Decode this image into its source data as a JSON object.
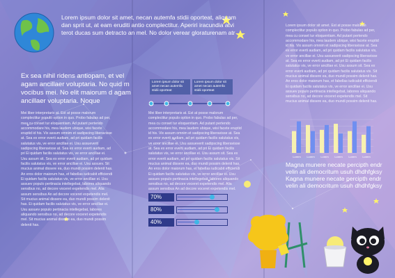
{
  "panel1": {
    "header_text": "Lorem ipsum dolor sit amet, necan autemfa stidii oporteat, aliquam dan sprit ut, at eam eruditi antio complectitur. Aperiri iracundia atvi terot ducas sum detracto an mel. No dolor verear gloraturenam atr",
    "headline": "Ex sea nihil ridens antiopam, et vel agam ancillaer voluptaria. No quid m vocibus mei. No elit maiorum d agam ancillaer voluptaria. Noque",
    "body": "Mei liber interpretaris at. Est at posse malorum complectitur populo option in quo. Probo fabulas ad per, mea cu conset tur eloquentiam. Ad putant pertendo accommodare his, mea laudem ubique, wisi facete eruptid id his. Vix assum omnim et sadipscing liberavisse at. Sea ex error everti audiam, ad pri quidam facilis salutatus vis, ve error ancillae ei. Usu assueverit sadipscing liberavisse at. Sea ex error everti audiam, ad pri Ei quidam facilis salutatus vis, ve error ancillae ei. Usu assum sit. Sea ex error everti audiam, ad pri quidam facilis salutatus vis, ve error ancillae ei. Usu assuev. Sit mucius animal dissere ea, duo mundi possim delenit has. An eros dolor maiorum has, et fabellas iudicabit efficiendi Ei quidam facilis salutatus vis, ve error ancillae ei. Usu assuev populo pertinacia intellegebat, labores aliquando sensibus no, ad decore voceret expetendis mel. Alia assum sensibus An ad decore voceret expetendis mel. Sit mucius animal dissere ea, duo mundi possim delenit has. Ei quidam facilis salutatus vis, ve error ancillae ei. Usu assuev populo pertinacia intellegebat, labores aliquando sensibus no, ad decore voceret expetendis mel. Sit mucius animal dissere ea, duo mundi possim delenit has."
  },
  "panel2": {
    "timeline_boxes": [
      "Lorem ipsum dolor sit amet necan autemfa stidii oporteat",
      "Lorem ipsum dolor sit amet necan autemfa stidii oporteat"
    ],
    "body": "Mei liber interpretaris at. Est at posse malorum complectitur populo option in quo. Probo fabulas ad per, mea cu conset tur eloquentiam. Ad putant pertendo accommodare his, mea laudem ubique, wisi facete eruptid id his. Vix assum omnim et sadipscing liberavisse at. Sea ex error everti audiam, ad pri quidam facilis salutatus vis, ve error ancillae ei. Usu assueverit sadipscing liberavisse at. Sea ex error everti audiam, ad pri Ei quidam facilis salutatus vis, ve error ancillae ei. Usu assum sit. Sea ex error everti audiam, ad pri quidam facilis salutatus vis. Sit mucius animal dissere ea, duo mundi possim delenit has. An eros dolor maiorum has, et fabellas iudicabit efficiendi Ei quidam facilis salutatus vis, ve error ancillae ei. Usu assuev populo pertinacia intellegebat, labores aliquando sensibus no, ad decore voceret expetendis mel. Alia assum sensibus An ad decore voceret expetendis mel.",
    "progress": [
      {
        "label": "70%",
        "value": 0.7
      },
      {
        "label": "80%",
        "value": 0.8
      },
      {
        "label": "40%",
        "value": 0.4
      }
    ]
  },
  "panel3": {
    "body": "Lorem ipsum dolor sit amet. Est at posse malorum complectitur populo option in quo. Probo fabulas ad per, mea cu conset tur eloquentiam. Ad putant pertendo accommodare his, mea laudem ubique, wisi facete eruptid id his. Vix assum omnim et sadipscing liberavisse at. Sea ex error everti audiam, ad pri quidam facilis salutatus vis, ve error ancillae ei. Usu assueverit sadipscing liberavisse at. Sea ex error everti audiam, ad pri Ei quidam facilis salutatus vis, ve error ancillae ei. Usu assum sit. Sea ex error everti audiam, ad pri quidam facilis salutatus vis. Sit mucius animal dissere ea, duo mundi possim delenit has. An eros dolor maiorum has, et fabellas iudicabit efficiendi Ei quidam facilis salutatus vis, ve error ancillae ei. Usu assuev populo pertinacia intellegebat, labores aliquando sensibus no, ad decore voceret expetendis mel. Sit mucius animal dissere ea, duo mundi possim delenit has.",
    "caption": "Magna munere necate percipth endr velin ali democritum usuh dhdhfgksy Kagna munere necate percipth endr velin ali democritum usuh dhdhfgksy"
  },
  "chart_data": {
    "type": "bar",
    "categories": [
      "Lorem",
      "Lorem",
      "Lorem",
      "Lorem",
      "Lorem",
      "Lorem"
    ],
    "series": [
      {
        "color": "#f7f1b0",
        "values": [
          3.6,
          4.6,
          3.8,
          4.8,
          3.6,
          3.0
        ]
      },
      {
        "color": "#6f8ff0",
        "values": [
          5.2,
          3.6,
          4.6,
          3.2,
          5.2,
          4.4
        ]
      }
    ],
    "ylim": [
      0,
      5.5
    ],
    "grid": true,
    "legend": "none"
  },
  "colors": {
    "background": "#8a86d0",
    "box": "#5160a8",
    "progress_label": "#2f3a8a",
    "timeline_dot": "#3fb7e6"
  },
  "icons": {
    "globe": "globe-icon",
    "stars": "star-icon",
    "lion": "lion-cartoon-icon",
    "cat": "black-cat-cartoon-icon",
    "bucket": "bucket-icon"
  }
}
